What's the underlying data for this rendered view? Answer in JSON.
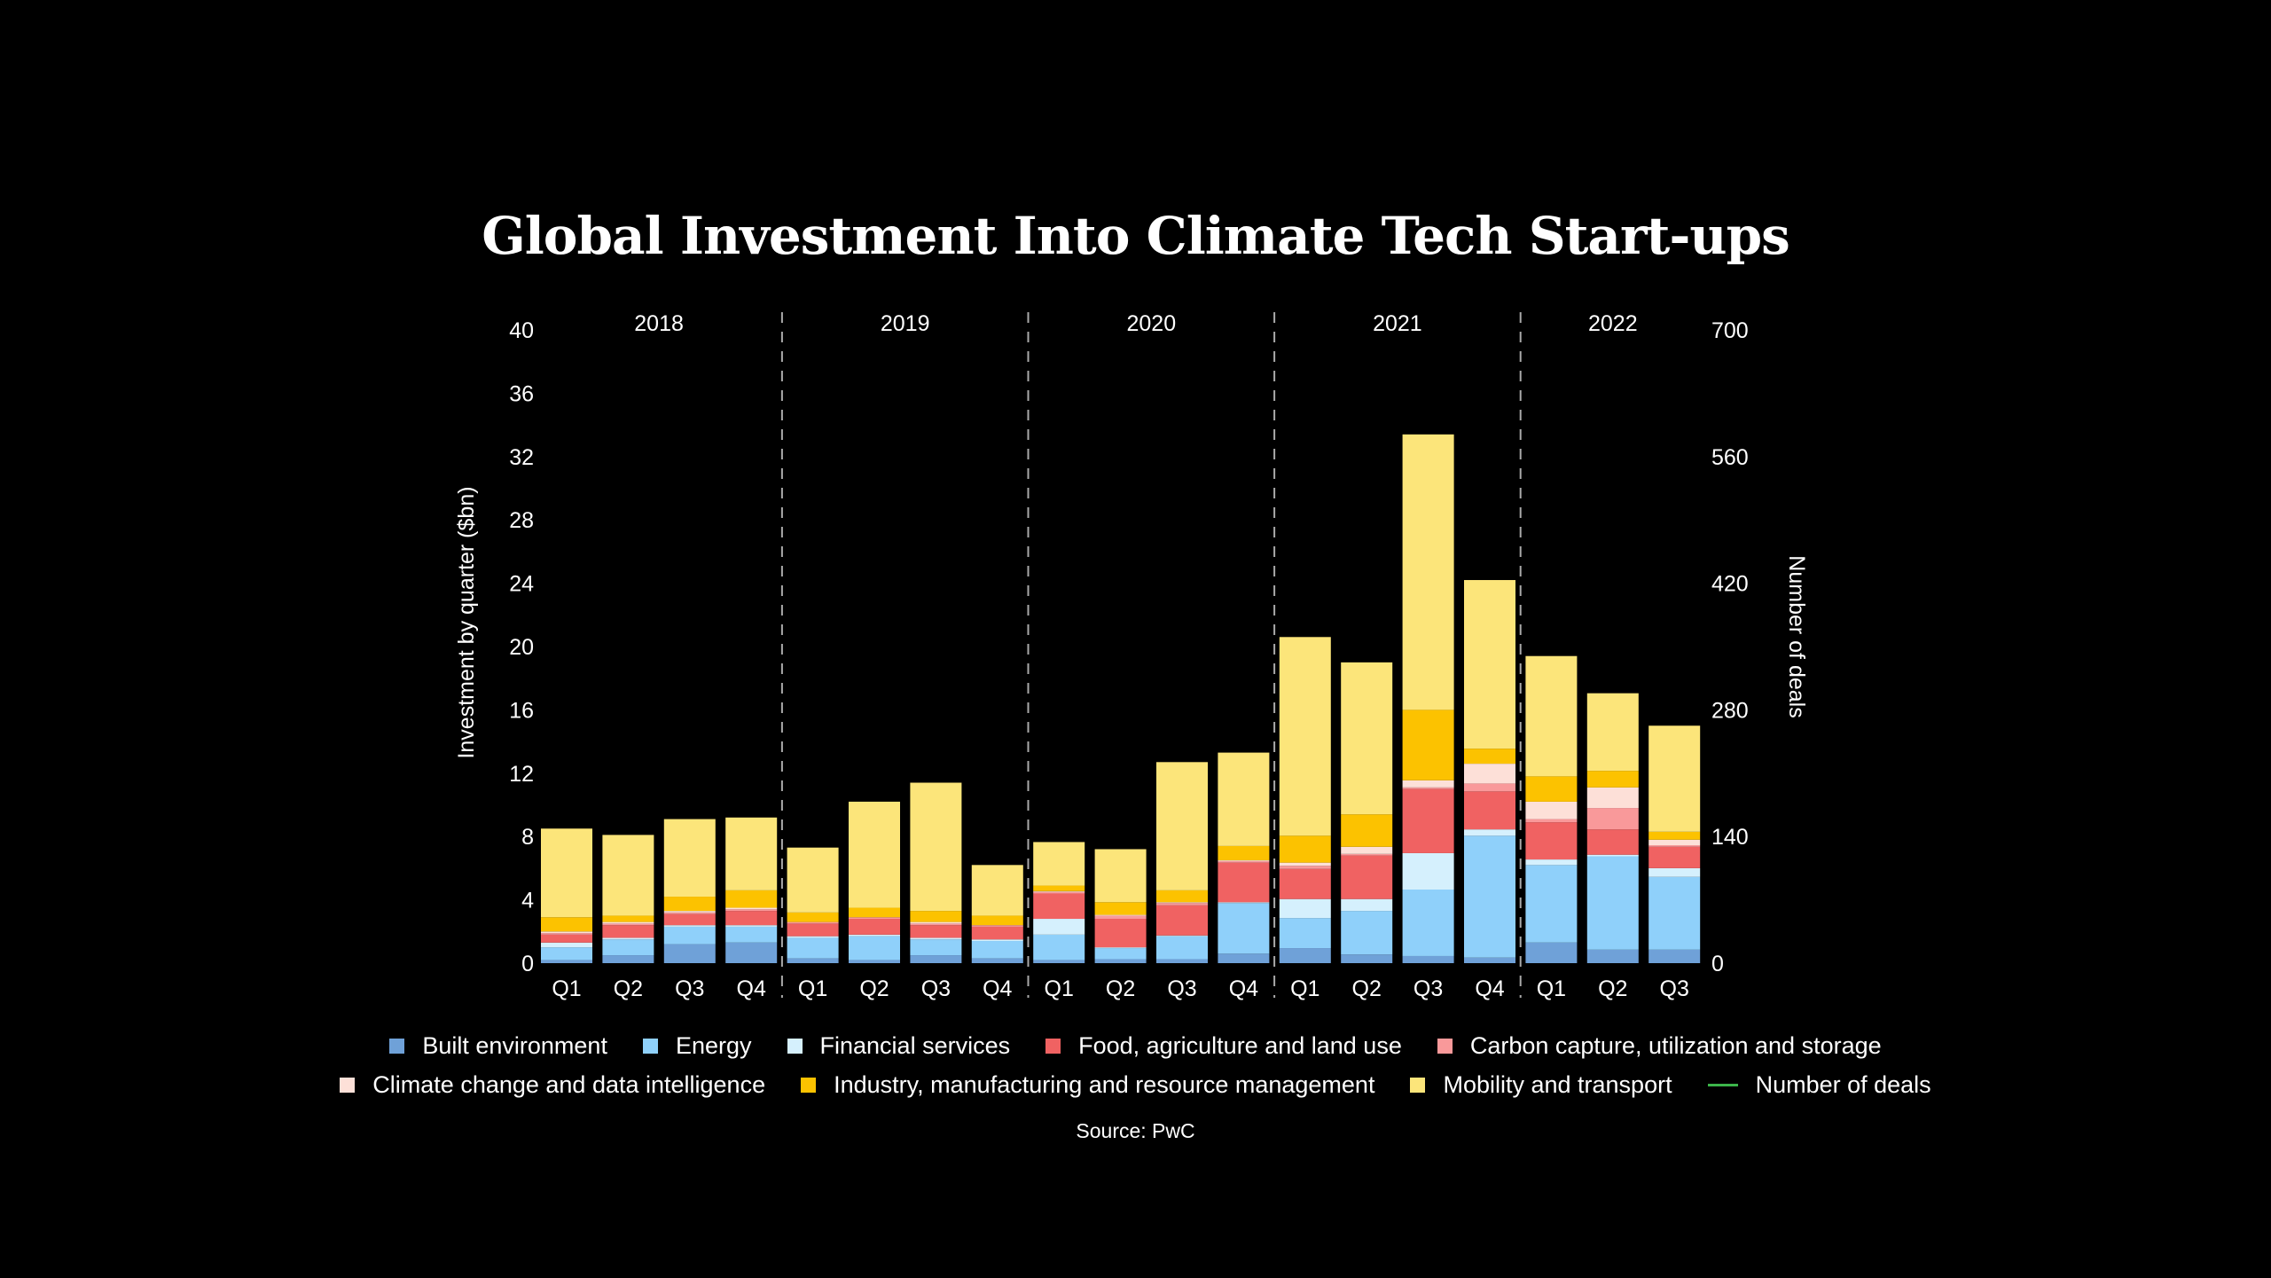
{
  "chart_data": {
    "type": "bar",
    "stacked": true,
    "title": "Global Investment Into Climate Tech Start-ups",
    "ylabel": "Investment by quarter ($bn)",
    "y2label": "Number of deals",
    "ylim": [
      0,
      40
    ],
    "yticks": [
      0,
      4,
      8,
      12,
      16,
      20,
      24,
      28,
      32,
      36,
      40
    ],
    "y2lim": [
      0,
      700
    ],
    "y2ticks": [
      0,
      140,
      280,
      420,
      560,
      700
    ],
    "years": [
      "2018",
      "2019",
      "2020",
      "2021",
      "2022"
    ],
    "categories": [
      "Q1",
      "Q2",
      "Q3",
      "Q4",
      "Q1",
      "Q2",
      "Q3",
      "Q4",
      "Q1",
      "Q2",
      "Q3",
      "Q4",
      "Q1",
      "Q2",
      "Q3",
      "Q4",
      "Q1",
      "Q2",
      "Q3"
    ],
    "year_of_category": [
      "2018",
      "2018",
      "2018",
      "2018",
      "2019",
      "2019",
      "2019",
      "2019",
      "2020",
      "2020",
      "2020",
      "2020",
      "2021",
      "2021",
      "2021",
      "2021",
      "2022",
      "2022",
      "2022"
    ],
    "grid": false,
    "legend_placement": "bottom",
    "series": [
      {
        "name": "Built environment",
        "color": "#6fa1d8",
        "values": [
          0.2,
          0.5,
          1.2,
          1.3,
          0.3,
          0.2,
          0.5,
          0.3,
          0.2,
          0.25,
          0.25,
          0.6,
          0.95,
          0.55,
          0.45,
          0.35,
          1.3,
          0.85,
          0.85
        ]
      },
      {
        "name": "Energy",
        "color": "#8fd0fa",
        "values": [
          0.8,
          1.0,
          1.1,
          1.0,
          1.3,
          1.5,
          1.0,
          1.1,
          1.6,
          0.7,
          1.45,
          3.2,
          1.9,
          2.75,
          4.2,
          7.7,
          4.9,
          5.9,
          4.6
        ]
      },
      {
        "name": "Financial services",
        "color": "#d5f0fd",
        "values": [
          0.3,
          0.1,
          0.1,
          0.1,
          0.1,
          0.1,
          0.1,
          0.1,
          1.0,
          0.05,
          0.05,
          0.05,
          1.2,
          0.75,
          2.3,
          0.4,
          0.35,
          0.1,
          0.55
        ]
      },
      {
        "name": "Food, agriculture and land use",
        "color": "#f06262",
        "values": [
          0.5,
          0.8,
          0.7,
          0.9,
          0.8,
          1.0,
          0.8,
          0.8,
          1.6,
          1.8,
          1.9,
          2.5,
          1.9,
          2.75,
          4.05,
          2.4,
          2.35,
          1.6,
          1.35
        ]
      },
      {
        "name": "Carbon capture, utilization and storage",
        "color": "#f9999a",
        "values": [
          0.1,
          0.1,
          0.1,
          0.1,
          0.1,
          0.1,
          0.1,
          0.1,
          0.1,
          0.2,
          0.15,
          0.1,
          0.2,
          0.1,
          0.1,
          0.5,
          0.2,
          1.35,
          0.1
        ]
      },
      {
        "name": "Climate change and data intelligence",
        "color": "#fde0d8",
        "values": [
          0.1,
          0.1,
          0.1,
          0.1,
          0.0,
          0.0,
          0.1,
          0.0,
          0.05,
          0.05,
          0.05,
          0.05,
          0.2,
          0.45,
          0.45,
          1.25,
          1.1,
          1.3,
          0.35
        ]
      },
      {
        "name": "Industry, manufacturing and resource management",
        "color": "#fcc200",
        "values": [
          0.9,
          0.4,
          0.9,
          1.1,
          0.6,
          0.6,
          0.7,
          0.6,
          0.35,
          0.8,
          0.75,
          0.9,
          1.7,
          2.05,
          4.45,
          0.95,
          1.6,
          1.05,
          0.5
        ]
      },
      {
        "name": "Mobility and transport",
        "color": "#fce57a",
        "values": [
          5.6,
          5.1,
          4.9,
          4.6,
          4.1,
          6.7,
          8.1,
          3.2,
          2.75,
          3.35,
          8.1,
          5.9,
          12.55,
          9.6,
          17.4,
          10.65,
          7.6,
          4.9,
          6.7
        ]
      }
    ],
    "line_series": {
      "name": "Number of deals",
      "color": "#3cb54a"
    },
    "source": "Source: PwC"
  }
}
